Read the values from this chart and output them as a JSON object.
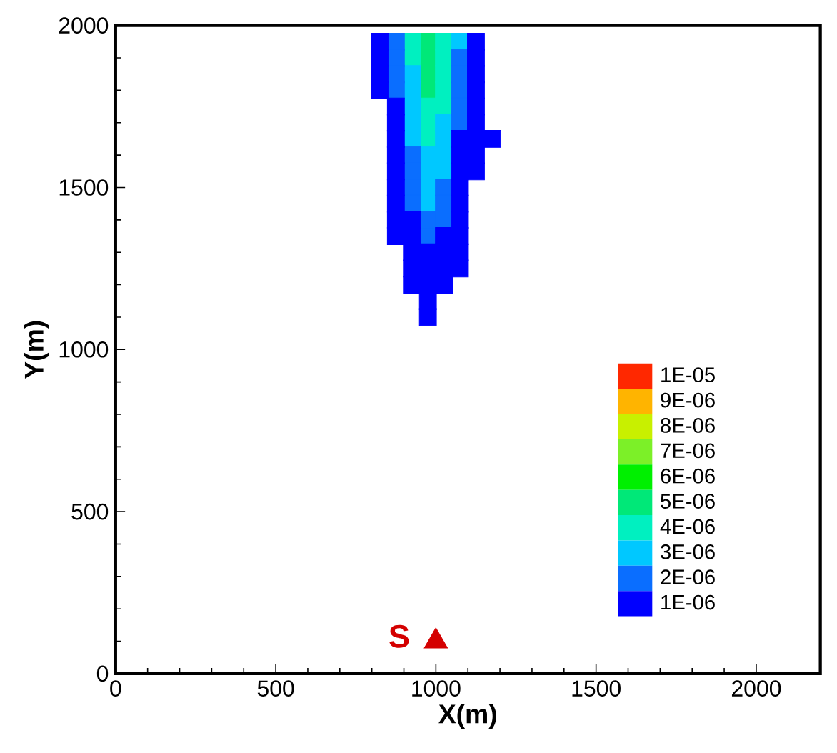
{
  "chart_data": {
    "type": "scatter",
    "xlabel": "X(m)",
    "ylabel": "Y(m)",
    "xlim": [
      0,
      2200
    ],
    "ylim": [
      0,
      2000
    ],
    "xticks": [
      0,
      500,
      1000,
      1500,
      2000
    ],
    "yticks": [
      0,
      500,
      1000,
      1500,
      2000
    ],
    "legend": "bottom right",
    "marker": "square",
    "series": [
      {
        "name": "1E-05",
        "color": "#ff2800"
      },
      {
        "name": "9E-06",
        "color": "#ffb400"
      },
      {
        "name": "8E-06",
        "color": "#c8f000"
      },
      {
        "name": "7E-06",
        "color": "#7cf028"
      },
      {
        "name": "6E-06",
        "color": "#00f000"
      },
      {
        "name": "5E-06",
        "color": "#00e878",
        "x": [
          975,
          975,
          975,
          975
        ],
        "values": [
          1950,
          1900,
          1850,
          1800
        ]
      },
      {
        "name": "4E-06",
        "color": "#00f0c0",
        "x": [
          925,
          1025,
          925,
          1025,
          1025,
          1025,
          975,
          1025,
          975,
          975
        ],
        "values": [
          1950,
          1950,
          1900,
          1900,
          1850,
          1800,
          1750,
          1750,
          1700,
          1650
        ]
      },
      {
        "name": "3E-06",
        "color": "#00c8ff",
        "x": [
          1075,
          925,
          925,
          925,
          925,
          1025,
          925,
          1025,
          975,
          1025,
          975,
          1025,
          975,
          975
        ],
        "values": [
          1950,
          1850,
          1800,
          1750,
          1700,
          1700,
          1650,
          1650,
          1600,
          1600,
          1550,
          1550,
          1500,
          1450
        ]
      },
      {
        "name": "2E-06",
        "color": "#0a6eff",
        "x": [
          875,
          875,
          1075,
          875,
          1075,
          875,
          1075,
          1075,
          1075,
          925,
          925,
          925,
          1025,
          925,
          1025,
          975,
          1025,
          975
        ],
        "values": [
          1950,
          1900,
          1900,
          1850,
          1850,
          1800,
          1800,
          1750,
          1700,
          1600,
          1550,
          1500,
          1500,
          1450,
          1450,
          1400,
          1400,
          1350
        ]
      },
      {
        "name": "1E-06",
        "color": "#0000ff",
        "x": [
          825,
          1125,
          825,
          1125,
          825,
          1125,
          825,
          1125,
          875,
          1125,
          875,
          1125,
          875,
          1075,
          1125,
          1175,
          875,
          1075,
          1125,
          875,
          1075,
          1125,
          875,
          1075,
          875,
          1075,
          875,
          925,
          1075,
          875,
          925,
          1025,
          1075,
          925,
          975,
          1025,
          1075,
          925,
          975,
          1025,
          1075,
          925,
          975,
          1025,
          975,
          975
        ],
        "values": [
          1950,
          1950,
          1900,
          1900,
          1850,
          1850,
          1800,
          1800,
          1750,
          1750,
          1700,
          1700,
          1650,
          1650,
          1650,
          1650,
          1600,
          1600,
          1600,
          1550,
          1550,
          1550,
          1500,
          1500,
          1450,
          1450,
          1400,
          1400,
          1400,
          1350,
          1350,
          1350,
          1350,
          1300,
          1300,
          1300,
          1300,
          1250,
          1250,
          1250,
          1250,
          1200,
          1200,
          1200,
          1150,
          1100
        ]
      },
      {
        "name": "S",
        "marker": "triangle",
        "color": "#d40000",
        "x": [
          1000
        ],
        "values": [
          100
        ]
      }
    ]
  }
}
